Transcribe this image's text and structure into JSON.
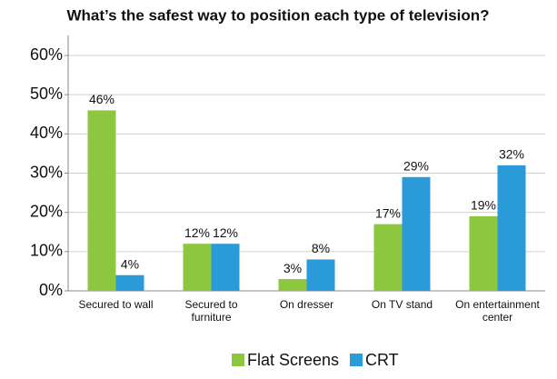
{
  "chart_data": {
    "type": "bar",
    "title": "What’s the safest way to position each type of television?",
    "categories": [
      "Secured to wall",
      "Secured to furniture",
      "On dresser",
      "On TV stand",
      "On entertainment center"
    ],
    "series": [
      {
        "name": "Flat Screens",
        "color": "#8dc63f",
        "values": [
          46,
          12,
          3,
          17,
          19
        ],
        "value_labels": [
          "46%",
          "12%",
          "3%",
          "17%",
          "19%"
        ]
      },
      {
        "name": "CRT",
        "color": "#2a9ad8",
        "values": [
          4,
          12,
          8,
          29,
          32
        ],
        "value_labels": [
          "4%",
          "12%",
          "8%",
          "29%",
          "32%"
        ]
      }
    ],
    "ylim": [
      0,
      60
    ],
    "yticks": [
      {
        "value": 0,
        "label": "0%"
      },
      {
        "value": 10,
        "label": "10%"
      },
      {
        "value": 20,
        "label": "20%"
      },
      {
        "value": 30,
        "label": "30%"
      },
      {
        "value": 40,
        "label": "40%"
      },
      {
        "value": 50,
        "label": "50%"
      },
      {
        "value": 60,
        "label": "60%"
      }
    ],
    "grid": true,
    "legend": "bottom"
  }
}
